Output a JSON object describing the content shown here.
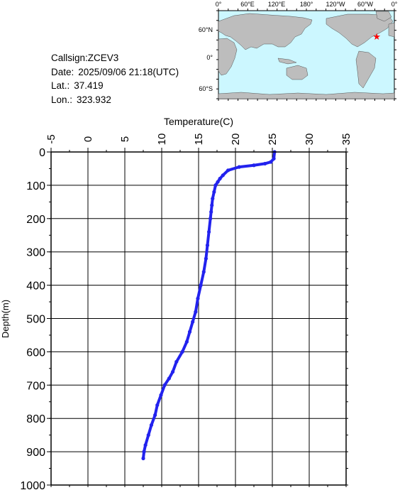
{
  "info": {
    "callsign_label": "Callsign:",
    "callsign": "ZCEV3",
    "date_label": "Date:",
    "date": "2025/09/06 21:18(UTC)",
    "lat_label": "Lat.:",
    "lat": "37.419",
    "lon_label": "Lon.:",
    "lon": "323.932"
  },
  "map": {
    "top_labels": [
      "0°",
      "60°E",
      "120°E",
      "180°",
      "120°W",
      "60°W",
      "0°"
    ],
    "left_labels": [
      "60°N",
      "0°",
      "60°S"
    ],
    "marker_lat": 37.419,
    "marker_lon": 323.932,
    "ocean_color": "#ccf7ff",
    "land_color": "#bdbdbd",
    "marker_color": "#ff0000"
  },
  "chart_data": {
    "type": "line",
    "xlabel": "Temperature(C)",
    "ylabel": "Depth(m)",
    "xlim": [
      -5,
      35
    ],
    "ylim": [
      0,
      1000
    ],
    "x_ticks": [
      -5,
      0,
      5,
      10,
      15,
      20,
      25,
      30,
      35
    ],
    "y_ticks": [
      0,
      100,
      200,
      300,
      400,
      500,
      600,
      700,
      800,
      900,
      1000
    ],
    "grid": true,
    "color": "#2222ee",
    "series": [
      {
        "name": "",
        "temperature": [
          25.3,
          25.2,
          24.8,
          24.0,
          22.5,
          20.5,
          19.0,
          18.3,
          17.9,
          17.6,
          17.3,
          17.1,
          16.9,
          16.8,
          16.7,
          16.6,
          16.4,
          16.2,
          16.0,
          15.7,
          15.3,
          14.9,
          14.6,
          14.2,
          13.8,
          13.4,
          12.8,
          12.0,
          11.5,
          11.0,
          10.4,
          9.9,
          9.4,
          9.1,
          8.6,
          8.2,
          7.8,
          7.6,
          7.5
        ],
        "depth": [
          0,
          20,
          30,
          35,
          40,
          45,
          55,
          70,
          80,
          90,
          100,
          120,
          140,
          160,
          180,
          200,
          240,
          280,
          320,
          360,
          400,
          440,
          480,
          510,
          540,
          570,
          600,
          630,
          660,
          680,
          700,
          730,
          760,
          790,
          820,
          850,
          880,
          900,
          920
        ]
      }
    ]
  }
}
